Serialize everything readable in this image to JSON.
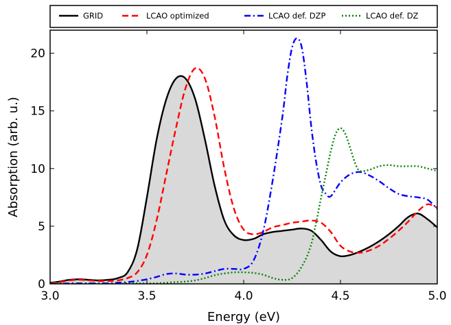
{
  "chart_data": {
    "type": "line",
    "title": "",
    "xlabel": "Energy (eV)",
    "ylabel": "Absorption (arb. u.)",
    "xlim": [
      3.0,
      5.0
    ],
    "ylim": [
      0,
      22
    ],
    "xticks": [
      3.0,
      3.5,
      4.0,
      4.5,
      5.0
    ],
    "xtick_labels": [
      "3.0",
      "3.5",
      "4.0",
      "4.5",
      "5.0"
    ],
    "yticks": [
      0,
      5,
      10,
      15,
      20
    ],
    "ytick_labels": [
      "0",
      "5",
      "10",
      "15",
      "20"
    ],
    "grid": false,
    "legend_position": "top",
    "series": [
      {
        "name": "GRID",
        "color": "#000000",
        "style": "solid",
        "filled": true,
        "fill_color": "#d9d9d9",
        "x": [
          3.0,
          3.05,
          3.1,
          3.15,
          3.2,
          3.25,
          3.3,
          3.35,
          3.4,
          3.45,
          3.5,
          3.55,
          3.6,
          3.65,
          3.7,
          3.75,
          3.8,
          3.85,
          3.9,
          3.95,
          4.0,
          4.05,
          4.1,
          4.15,
          4.2,
          4.25,
          4.3,
          4.35,
          4.4,
          4.45,
          4.5,
          4.55,
          4.6,
          4.65,
          4.7,
          4.75,
          4.8,
          4.85,
          4.9,
          4.95,
          5.0
        ],
        "y": [
          0.1,
          0.2,
          0.35,
          0.4,
          0.35,
          0.3,
          0.35,
          0.5,
          1.0,
          3.0,
          7.5,
          12.5,
          16.0,
          17.8,
          17.8,
          16.0,
          12.5,
          8.5,
          5.5,
          4.2,
          3.8,
          3.9,
          4.3,
          4.5,
          4.6,
          4.7,
          4.8,
          4.6,
          3.8,
          2.8,
          2.4,
          2.5,
          2.8,
          3.2,
          3.7,
          4.3,
          5.0,
          5.8,
          6.1,
          5.6,
          4.9
        ]
      },
      {
        "name": "LCAO optimized",
        "color": "#ff0000",
        "style": "dashed",
        "x": [
          3.0,
          3.05,
          3.1,
          3.15,
          3.2,
          3.25,
          3.3,
          3.35,
          3.4,
          3.45,
          3.5,
          3.55,
          3.6,
          3.65,
          3.7,
          3.75,
          3.8,
          3.85,
          3.9,
          3.95,
          4.0,
          4.05,
          4.1,
          4.15,
          4.2,
          4.25,
          4.3,
          4.35,
          4.4,
          4.45,
          4.5,
          4.55,
          4.6,
          4.65,
          4.7,
          4.75,
          4.8,
          4.85,
          4.9,
          4.95,
          5.0
        ],
        "y": [
          0.05,
          0.15,
          0.3,
          0.35,
          0.3,
          0.25,
          0.25,
          0.3,
          0.5,
          1.0,
          2.5,
          5.5,
          9.5,
          13.5,
          17.0,
          18.7,
          17.8,
          14.5,
          10.0,
          6.5,
          4.7,
          4.3,
          4.5,
          4.9,
          5.1,
          5.3,
          5.4,
          5.5,
          5.3,
          4.5,
          3.3,
          2.8,
          2.7,
          2.9,
          3.3,
          3.9,
          4.6,
          5.4,
          6.3,
          6.9,
          6.6
        ]
      },
      {
        "name": "LCAO def. DZP",
        "color": "#0000ff",
        "style": "dashdot",
        "x": [
          3.0,
          3.05,
          3.1,
          3.15,
          3.2,
          3.25,
          3.3,
          3.35,
          3.4,
          3.45,
          3.5,
          3.55,
          3.6,
          3.65,
          3.7,
          3.75,
          3.8,
          3.85,
          3.9,
          3.95,
          4.0,
          4.05,
          4.1,
          4.15,
          4.2,
          4.225,
          4.25,
          4.275,
          4.3,
          4.325,
          4.35,
          4.375,
          4.4,
          4.425,
          4.45,
          4.5,
          4.55,
          4.6,
          4.65,
          4.7,
          4.75,
          4.8,
          4.85,
          4.9,
          4.95,
          5.0
        ],
        "y": [
          0.0,
          0.0,
          0.05,
          0.05,
          0.05,
          0.05,
          0.05,
          0.1,
          0.15,
          0.25,
          0.4,
          0.6,
          0.85,
          0.9,
          0.8,
          0.8,
          0.9,
          1.1,
          1.3,
          1.3,
          1.3,
          2.0,
          4.5,
          9.0,
          14.5,
          18.0,
          20.5,
          21.3,
          20.5,
          17.5,
          13.5,
          10.5,
          8.5,
          7.8,
          7.6,
          8.8,
          9.5,
          9.7,
          9.4,
          8.9,
          8.3,
          7.8,
          7.6,
          7.5,
          7.3,
          6.5
        ]
      },
      {
        "name": "LCAO def. DZ",
        "color": "#008000",
        "style": "dotted",
        "x": [
          3.0,
          3.05,
          3.1,
          3.15,
          3.2,
          3.25,
          3.3,
          3.35,
          3.4,
          3.45,
          3.5,
          3.55,
          3.6,
          3.65,
          3.7,
          3.75,
          3.8,
          3.85,
          3.9,
          3.95,
          4.0,
          4.05,
          4.1,
          4.15,
          4.2,
          4.25,
          4.3,
          4.35,
          4.4,
          4.425,
          4.45,
          4.475,
          4.5,
          4.525,
          4.55,
          4.575,
          4.6,
          4.65,
          4.7,
          4.75,
          4.8,
          4.85,
          4.9,
          4.95,
          5.0
        ],
        "y": [
          0.0,
          0.0,
          0.0,
          0.0,
          0.0,
          0.0,
          0.0,
          0.0,
          0.05,
          0.05,
          0.05,
          0.05,
          0.1,
          0.15,
          0.2,
          0.3,
          0.5,
          0.75,
          0.9,
          1.0,
          1.0,
          0.95,
          0.8,
          0.5,
          0.35,
          0.5,
          1.5,
          3.5,
          7.5,
          9.5,
          11.5,
          13.0,
          13.5,
          13.0,
          11.8,
          10.5,
          9.8,
          9.9,
          10.2,
          10.3,
          10.2,
          10.2,
          10.2,
          10.0,
          9.8
        ]
      }
    ]
  }
}
